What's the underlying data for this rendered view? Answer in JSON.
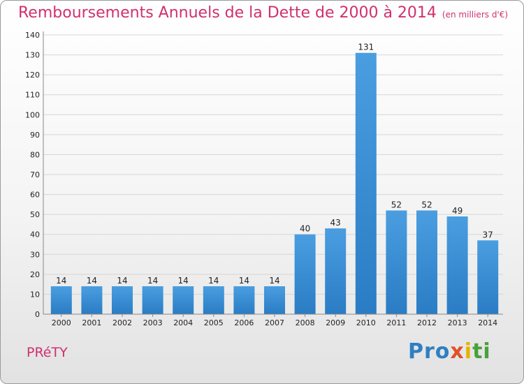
{
  "chart_data": {
    "type": "bar",
    "title": "Remboursements Annuels de la Dette de 2000 à 2014",
    "subtitle": "(en milliers d'€)",
    "categories": [
      "2000",
      "2001",
      "2002",
      "2003",
      "2004",
      "2005",
      "2006",
      "2007",
      "2008",
      "2009",
      "2010",
      "2011",
      "2012",
      "2013",
      "2014"
    ],
    "values": [
      14,
      14,
      14,
      14,
      14,
      14,
      14,
      14,
      40,
      43,
      131,
      52,
      52,
      49,
      37
    ],
    "ylim": [
      0,
      140
    ],
    "yticks": [
      0,
      10,
      20,
      30,
      40,
      50,
      60,
      70,
      80,
      90,
      100,
      110,
      120,
      130,
      140
    ],
    "xlabel": "",
    "ylabel": "",
    "grid": true,
    "bar_color": "#4a9ee0",
    "bar_color_dark": "#2a7cc4"
  },
  "footer": {
    "commune": "PRéTY",
    "brand_parts": [
      "Pro",
      "x",
      "i",
      "ti"
    ]
  },
  "colors": {
    "accent": "#d0306d"
  }
}
